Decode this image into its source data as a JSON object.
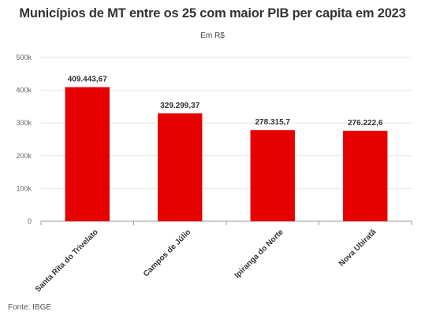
{
  "title": "Municípios de MT entre os 25 com maior PIB per capita em 2023",
  "subtitle": "Em R$",
  "source": "Fonte: IBGE",
  "colors": {
    "bar": "#e60000",
    "grid": "#e6e6e6",
    "axis": "#999999"
  },
  "chart_data": {
    "type": "bar",
    "title": "Municípios de MT entre os 25 com maior PIB per capita em 2023",
    "subtitle": "Em R$",
    "xlabel": "",
    "ylabel": "",
    "categories": [
      "Santa Rita do Trivelato",
      "Campos de Júlio",
      "Ipiranga do Norte",
      "Nova Ubiratã"
    ],
    "values": [
      409443.67,
      329299.37,
      278315.7,
      276222.6
    ],
    "data_labels": [
      "409.443,67",
      "329.299,37",
      "278.315,7",
      "276.222,6"
    ],
    "ylim": [
      0,
      500000
    ],
    "yticks": [
      0,
      100000,
      200000,
      300000,
      400000,
      500000
    ],
    "ytick_labels": [
      "0",
      "100k",
      "200k",
      "300k",
      "400k",
      "500k"
    ],
    "grid": true,
    "legend": "none"
  }
}
